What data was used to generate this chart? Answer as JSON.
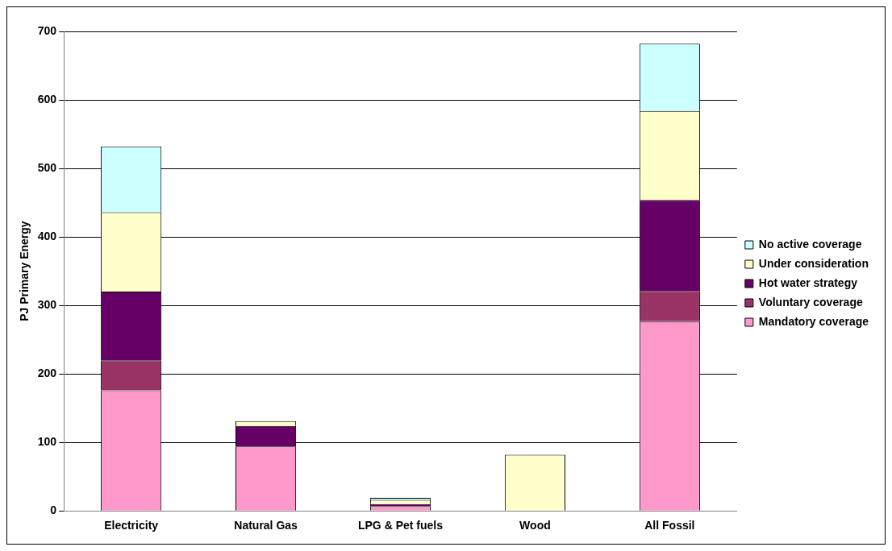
{
  "chart_data": {
    "type": "bar",
    "stacked": true,
    "ylabel": "PJ Primary Energy",
    "categories": [
      "Electricity",
      "Natural Gas",
      "LPG & Pet fuels",
      "Wood",
      "All Fossil"
    ],
    "series": [
      {
        "name": "Mandatory coverage",
        "color": "#ff99cc",
        "values": [
          176,
          94,
          7,
          0,
          277
        ]
      },
      {
        "name": "Voluntary coverage",
        "color": "#993366",
        "values": [
          44,
          0,
          0,
          0,
          44
        ]
      },
      {
        "name": "Hot water strategy",
        "color": "#660066",
        "values": [
          100,
          30,
          3,
          0,
          133
        ]
      },
      {
        "name": "Under consideration",
        "color": "#ffffcc",
        "values": [
          116,
          7,
          6,
          82,
          130
        ]
      },
      {
        "name": "No active coverage",
        "color": "#ccffff",
        "values": [
          96,
          0,
          3,
          0,
          98
        ]
      }
    ],
    "ylim": [
      0,
      700
    ],
    "yticks": [
      0,
      100,
      200,
      300,
      400,
      500,
      600,
      700
    ],
    "grid": "y",
    "legend": "right"
  }
}
